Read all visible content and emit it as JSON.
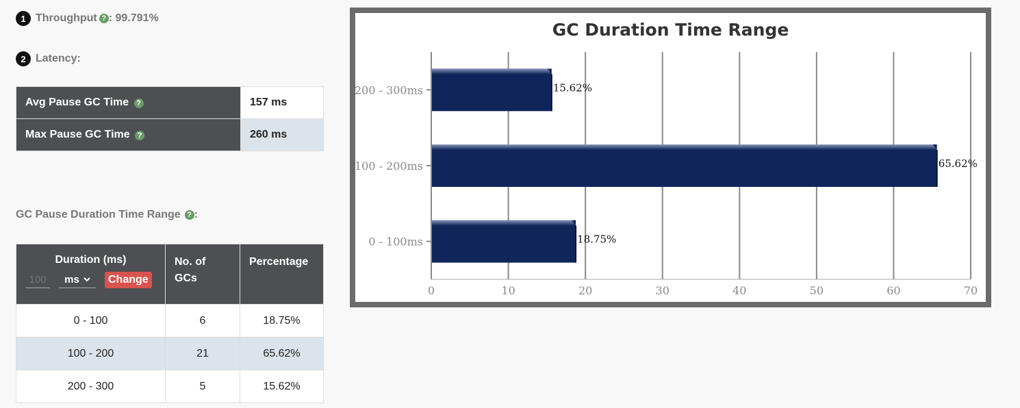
{
  "throughput": {
    "badge": "1",
    "label": "Throughput",
    "help": "?",
    "sep": ": ",
    "value": "99.791%"
  },
  "latency": {
    "badge": "2",
    "label": "Latency:",
    "rows": [
      {
        "label": "Avg Pause GC Time",
        "help": "?",
        "value": "157 ms"
      },
      {
        "label": "Max Pause GC Time",
        "help": "?",
        "value": "260 ms"
      }
    ]
  },
  "range_section": {
    "title": "GC Pause Duration Time Range",
    "help": "?",
    "suffix": ":"
  },
  "dist_table": {
    "headers": {
      "duration": "Duration (ms)",
      "gcs_line1": "No. of",
      "gcs_line2": "GCs",
      "percentage": "Percentage"
    },
    "interval_placeholder": "100",
    "unit": "ms",
    "change_label": "Change",
    "rows": [
      {
        "range": "0 - 100",
        "count": "6",
        "pct": "18.75%"
      },
      {
        "range": "100 - 200",
        "count": "21",
        "pct": "65.62%"
      },
      {
        "range": "200 - 300",
        "count": "5",
        "pct": "15.62%"
      }
    ]
  },
  "chart_data": {
    "type": "bar",
    "orientation": "horizontal",
    "title": "GC Duration Time Range",
    "categories": [
      "0 - 100ms",
      "100 - 200ms",
      "200 - 300ms"
    ],
    "values": [
      18.75,
      65.62,
      15.62
    ],
    "data_labels": [
      "18.75%",
      "65.62%",
      "15.62%"
    ],
    "xlim": [
      0,
      70
    ],
    "xticks": [
      0,
      10,
      20,
      30,
      40,
      50,
      60,
      70
    ],
    "grid": true,
    "bar_color": "#10255a"
  },
  "colors": {
    "header_bg": "#4d4f53",
    "alt_row": "#dbe4ea",
    "change_btn": "#d9534f",
    "help": "#6a9b6a"
  }
}
